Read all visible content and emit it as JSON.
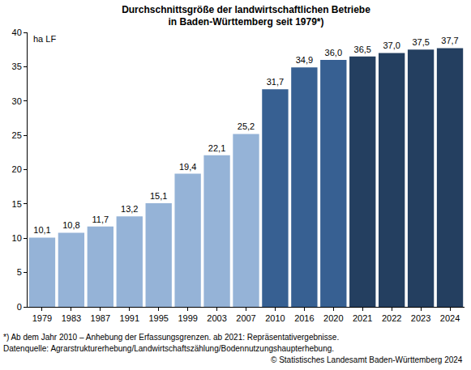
{
  "chart_data": {
    "type": "bar",
    "title": [
      "Durchschnittsgröße der landwirtschaftlichen Betriebe",
      "in Baden-Württemberg seit 1979*)"
    ],
    "y_label": "ha LF",
    "categories": [
      "1979",
      "1983",
      "1987",
      "1991",
      "1995",
      "1999",
      "2003",
      "2007",
      "2010",
      "2016",
      "2020",
      "2021",
      "2022",
      "2023",
      "2024"
    ],
    "values": [
      10.1,
      10.8,
      11.7,
      13.2,
      15.1,
      19.4,
      22.1,
      25.2,
      31.7,
      34.9,
      36.0,
      36.5,
      37.0,
      37.5,
      37.7
    ],
    "value_labels": [
      "10,1",
      "10,8",
      "11,7",
      "13,2",
      "15,1",
      "19,4",
      "22,1",
      "25,2",
      "31,7",
      "34,9",
      "36,0",
      "36,5",
      "37,0",
      "37,5",
      "37,7"
    ],
    "colors": [
      "#95b3d7",
      "#95b3d7",
      "#95b3d7",
      "#95b3d7",
      "#95b3d7",
      "#95b3d7",
      "#95b3d7",
      "#95b3d7",
      "#376092",
      "#376092",
      "#376092",
      "#243f60",
      "#243f60",
      "#243f60",
      "#243f60"
    ],
    "ylim": [
      0,
      40
    ],
    "yticks": [
      0,
      5,
      10,
      15,
      20,
      25,
      30,
      35,
      40
    ],
    "grid": false,
    "data_labels": true,
    "footnotes": [
      "*) Ab dem Jahr 2010 – Anhebung der Erfassungsgrenzen. ab 2021: Repräsentativergebnisse.",
      "Datenquelle: Agrarstrukturerhebung/Landwirtschaftszählung/Bodennutzungshaupterhebung."
    ],
    "copyright": "© Statistisches Landesamt Baden-Württemberg 2024"
  }
}
